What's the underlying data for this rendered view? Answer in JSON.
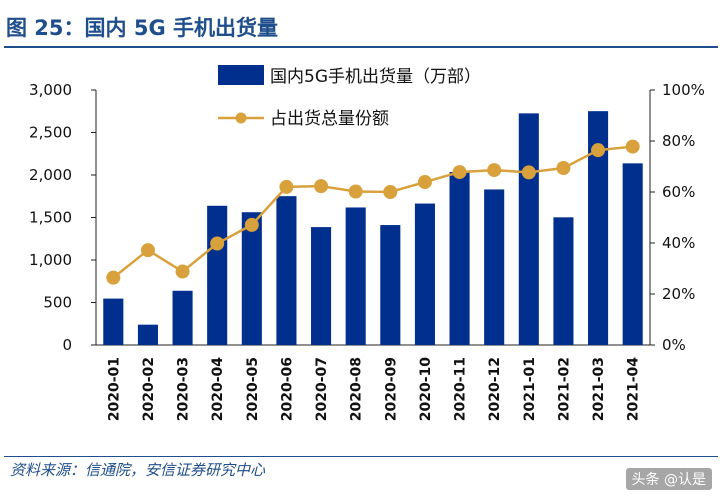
{
  "header": {
    "title": "图 25：国内 5G 手机出货量"
  },
  "chart_data": {
    "type": "bar+line",
    "categories": [
      "2020-01",
      "2020-02",
      "2020-03",
      "2020-04",
      "2020-05",
      "2020-06",
      "2020-07",
      "2020-08",
      "2020-09",
      "2020-10",
      "2020-11",
      "2020-12",
      "2021-01",
      "2021-02",
      "2021-03",
      "2021-04"
    ],
    "series": [
      {
        "name": "国内5G手机出货量（万部）",
        "type": "bar",
        "axis": "left",
        "color": "#002f8e",
        "values": [
          546,
          239,
          638,
          1638,
          1562,
          1751,
          1387,
          1618,
          1411,
          1664,
          2035,
          1830,
          2725,
          1502,
          2751,
          2137
        ]
      },
      {
        "name": "占出货总量份额",
        "type": "line",
        "axis": "right",
        "color": "#d9a13b",
        "values": [
          26.4,
          37.2,
          28.8,
          39.8,
          47.1,
          62.0,
          62.3,
          60.2,
          60.0,
          63.9,
          67.8,
          68.6,
          67.7,
          69.4,
          76.4,
          77.8
        ]
      }
    ],
    "ylim_left": [
      0,
      3000
    ],
    "yticks_left": [
      "3,000",
      "2,500",
      "2,000",
      "1,500",
      "1,000",
      "500",
      "0"
    ],
    "ylim_right": [
      0,
      100
    ],
    "yticks_right": [
      "100%",
      "80%",
      "60%",
      "40%",
      "20%",
      "0%"
    ],
    "legend_position": "top-center"
  },
  "footer": {
    "source": "资料来源：信通院，安信证券研究中心",
    "watermark": "头条 @认是"
  }
}
